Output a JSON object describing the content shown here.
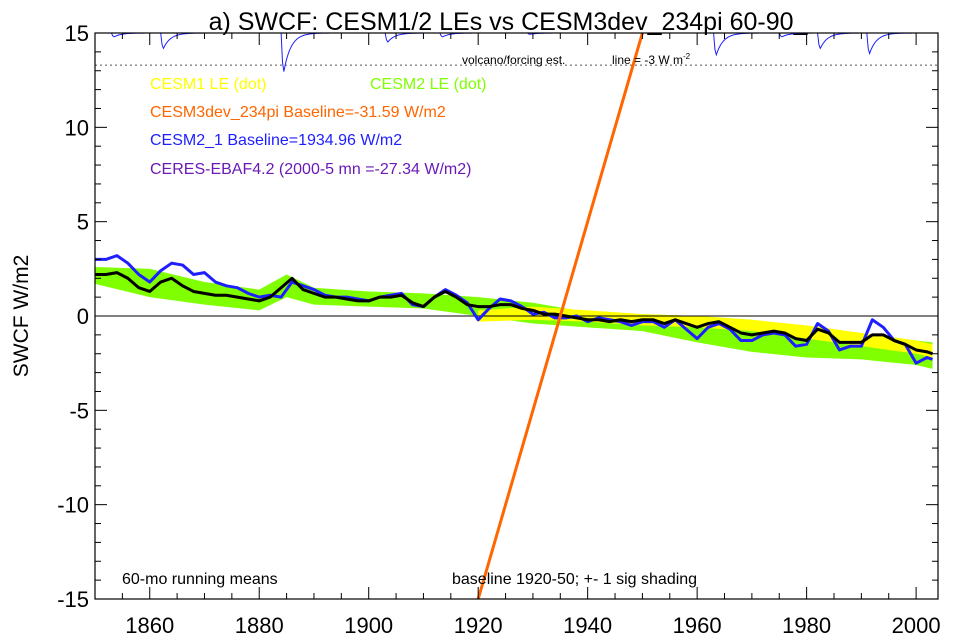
{
  "chart_data": {
    "type": "line",
    "title": "a) SWCF: CESM1/2 LEs vs CESM3dev_234pi 60-90_",
    "ylabel": "SWCF W/m2",
    "xlabel": "",
    "xlim": [
      1850,
      2004
    ],
    "ylim": [
      -15,
      15
    ],
    "grid": false,
    "x_ticks": [
      1860,
      1880,
      1900,
      1920,
      1940,
      1960,
      1980,
      2000
    ],
    "y_ticks": [
      15,
      10,
      5,
      0,
      -5,
      -10,
      -15
    ],
    "y_tick_labels": [
      "15",
      "10",
      "5",
      "0",
      "-5",
      "-10",
      "-15"
    ],
    "legend": [
      {
        "label": "CESM1 LE (dot)",
        "color": "#ffff00"
      },
      {
        "label": "CESM2 LE (dot)",
        "color": "#7fff00"
      },
      {
        "label": "CESM3dev_234pi Baseline=-31.59 W/m2",
        "color": "#ff6600"
      },
      {
        "label": "CESM2_1 Baseline=1934.96 W/m2",
        "color": "#1e1eff"
      },
      {
        "label": "CERES-EBAF4.2 (2000-5 mn =-27.34 W/m2)",
        "color": "#6a1ab5"
      }
    ],
    "annotations": {
      "volcano": "volcano/forcing est.",
      "line_label": "line = -3 W m",
      "line_label_sup": "-2",
      "running_means": "60-mo running means",
      "baseline_note": "baseline 1920-50; +- 1 sig shading"
    },
    "volcano_reference_y": 13.3,
    "zero_line_y": 0,
    "series": [
      {
        "name": "CESM3dev_234pi",
        "color": "#ff6600",
        "x": [
          1920,
          1950
        ],
        "y": [
          -15.0,
          15.0
        ]
      },
      {
        "name": "CESM2_1",
        "color": "#1e1eff",
        "x": [
          1850,
          1852,
          1854,
          1856,
          1858,
          1860,
          1862,
          1864,
          1866,
          1868,
          1870,
          1872,
          1874,
          1876,
          1878,
          1880,
          1882,
          1884,
          1886,
          1888,
          1890,
          1892,
          1894,
          1896,
          1898,
          1900,
          1902,
          1904,
          1906,
          1908,
          1910,
          1912,
          1914,
          1916,
          1918,
          1920,
          1922,
          1924,
          1926,
          1928,
          1930,
          1932,
          1934,
          1936,
          1938,
          1940,
          1942,
          1944,
          1946,
          1948,
          1950,
          1952,
          1954,
          1956,
          1958,
          1960,
          1962,
          1964,
          1966,
          1968,
          1970,
          1972,
          1974,
          1976,
          1978,
          1980,
          1982,
          1984,
          1986,
          1988,
          1990,
          1992,
          1994,
          1996,
          1998,
          2000,
          2002,
          2003
        ],
        "y": [
          3.0,
          3.0,
          3.2,
          2.8,
          2.2,
          1.8,
          2.4,
          2.8,
          2.7,
          2.2,
          2.3,
          1.8,
          1.6,
          1.5,
          1.2,
          1.0,
          1.1,
          1.0,
          1.8,
          1.6,
          1.4,
          1.1,
          1.0,
          1.0,
          0.9,
          0.8,
          1.0,
          1.1,
          1.2,
          0.6,
          0.5,
          1.0,
          1.4,
          1.1,
          0.7,
          -0.2,
          0.4,
          0.9,
          0.8,
          0.5,
          0.1,
          0.2,
          -0.1,
          -0.1,
          0.0,
          -0.3,
          -0.1,
          -0.2,
          -0.3,
          -0.5,
          -0.3,
          -0.3,
          -0.6,
          -0.2,
          -0.7,
          -1.2,
          -0.6,
          -0.4,
          -0.7,
          -1.3,
          -1.3,
          -1.0,
          -0.9,
          -1.0,
          -1.6,
          -1.5,
          -0.4,
          -0.8,
          -1.8,
          -1.6,
          -1.6,
          -0.2,
          -0.6,
          -1.3,
          -1.5,
          -2.5,
          -2.2,
          -2.3
        ]
      },
      {
        "name": "CESM2 LE mean",
        "color": "#000000",
        "x": [
          1850,
          1852,
          1854,
          1856,
          1858,
          1860,
          1862,
          1864,
          1866,
          1868,
          1870,
          1872,
          1874,
          1876,
          1878,
          1880,
          1882,
          1884,
          1886,
          1888,
          1890,
          1892,
          1894,
          1896,
          1898,
          1900,
          1902,
          1904,
          1906,
          1908,
          1910,
          1912,
          1914,
          1916,
          1918,
          1920,
          1922,
          1924,
          1926,
          1928,
          1930,
          1932,
          1934,
          1936,
          1938,
          1940,
          1942,
          1944,
          1946,
          1948,
          1950,
          1952,
          1954,
          1956,
          1958,
          1960,
          1962,
          1964,
          1966,
          1968,
          1970,
          1972,
          1974,
          1976,
          1978,
          1980,
          1982,
          1984,
          1986,
          1988,
          1990,
          1992,
          1994,
          1996,
          1998,
          2000,
          2002,
          2003
        ],
        "y": [
          2.2,
          2.2,
          2.3,
          2.0,
          1.5,
          1.3,
          1.8,
          2.0,
          1.6,
          1.3,
          1.2,
          1.1,
          1.1,
          1.0,
          0.9,
          0.8,
          1.0,
          1.5,
          2.0,
          1.4,
          1.2,
          1.0,
          1.0,
          0.9,
          0.8,
          0.8,
          1.0,
          1.0,
          1.1,
          0.7,
          0.5,
          1.0,
          1.3,
          1.0,
          0.6,
          0.5,
          0.5,
          0.6,
          0.6,
          0.4,
          0.3,
          0.1,
          0.1,
          0.0,
          -0.1,
          -0.2,
          -0.2,
          -0.3,
          -0.2,
          -0.3,
          -0.2,
          -0.2,
          -0.4,
          -0.2,
          -0.4,
          -0.6,
          -0.4,
          -0.3,
          -0.6,
          -0.9,
          -1.0,
          -0.9,
          -0.8,
          -0.9,
          -1.2,
          -1.3,
          -0.7,
          -0.9,
          -1.4,
          -1.4,
          -1.4,
          -1.0,
          -1.0,
          -1.3,
          -1.5,
          -1.8,
          -1.9,
          -2.0
        ]
      },
      {
        "name": "CESM1 LE band",
        "color": "#ffff00",
        "x": [
          1920,
          1930,
          1940,
          1950,
          1960,
          1970,
          1980,
          1990,
          2000,
          2003
        ],
        "y_upper": [
          0.3,
          0.5,
          0.3,
          0.1,
          0.0,
          -0.2,
          -0.5,
          -0.9,
          -1.3,
          -1.5
        ],
        "y_lower": [
          -0.3,
          -0.2,
          -0.3,
          -0.5,
          -0.6,
          -0.8,
          -1.2,
          -1.6,
          -2.0,
          -2.2
        ]
      },
      {
        "name": "CESM2 LE band",
        "color": "#7fff00",
        "x": [
          1850,
          1860,
          1870,
          1880,
          1885,
          1890,
          1900,
          1910,
          1920,
          1930,
          1940,
          1950,
          1960,
          1970,
          1980,
          1990,
          2000,
          2003
        ],
        "y_upper": [
          2.6,
          2.5,
          1.8,
          1.4,
          2.2,
          1.5,
          1.3,
          1.2,
          1.0,
          0.7,
          0.2,
          0.1,
          0.0,
          -0.2,
          -0.6,
          -0.9,
          -1.3,
          -1.4
        ],
        "y_lower": [
          1.7,
          1.0,
          0.6,
          0.3,
          1.0,
          0.6,
          0.5,
          0.4,
          0.0,
          -0.4,
          -0.6,
          -0.8,
          -1.4,
          -1.9,
          -2.2,
          -2.3,
          -2.6,
          -2.8
        ]
      },
      {
        "name": "volcano/forcing est.",
        "color": "#1e1eff",
        "baseline": 15.0,
        "dips": [
          {
            "year": 1853,
            "depth": 0.3
          },
          {
            "year": 1862,
            "depth": 1.2
          },
          {
            "year": 1884,
            "depth": 3.0
          },
          {
            "year": 1903,
            "depth": 0.7
          },
          {
            "year": 1913,
            "depth": 0.3
          },
          {
            "year": 1929,
            "depth": 0.1
          },
          {
            "year": 1963,
            "depth": 1.7
          },
          {
            "year": 1975,
            "depth": 0.3
          },
          {
            "year": 1982,
            "depth": 1.2
          },
          {
            "year": 1991,
            "depth": 1.6
          }
        ]
      }
    ]
  }
}
